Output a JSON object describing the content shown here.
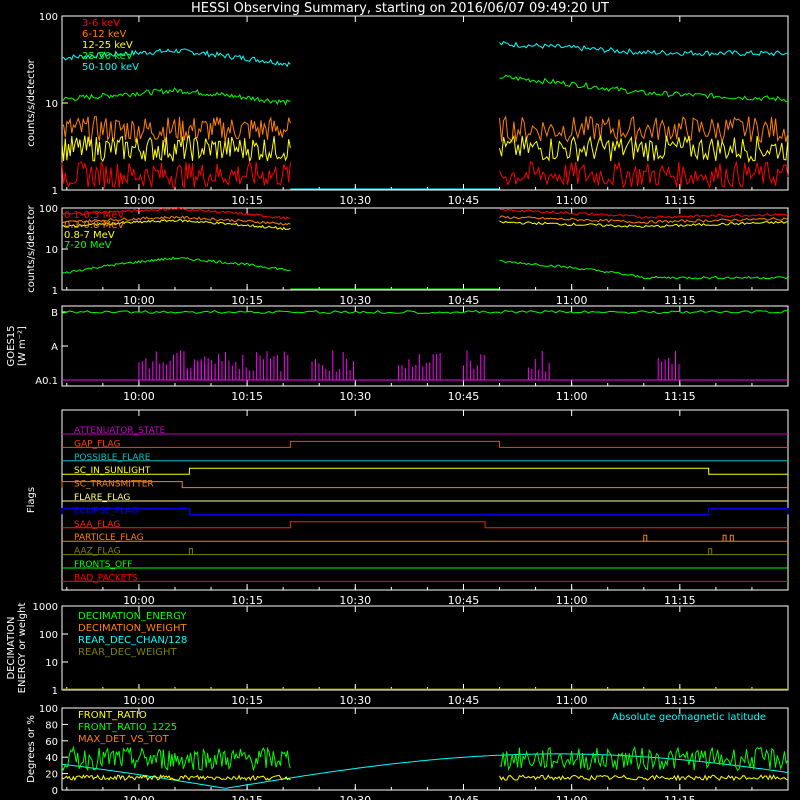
{
  "title": "HESSI Observing Summary, starting on 2016/06/07 09:49:20 UT",
  "time_ticks": [
    "10:00",
    "10:15",
    "10:30",
    "10:45",
    "11:00",
    "11:15"
  ],
  "chart_data": [
    {
      "id": "p1",
      "type": "line",
      "scale": "log",
      "ylabel": "counts/s/detector",
      "ylim": [
        1,
        100
      ],
      "yticks": [
        "1",
        "10",
        "100"
      ],
      "data_gap": [
        "10:21",
        "10:50"
      ],
      "legend": [
        {
          "name": "3-6 keV",
          "color": "#ff0000"
        },
        {
          "name": "6-12 keV",
          "color": "#ff8000"
        },
        {
          "name": "12-25 keV",
          "color": "#ffff00"
        },
        {
          "name": "25-50 keV",
          "color": "#00ff00"
        },
        {
          "name": "50-100 keV",
          "color": "#00ffff"
        }
      ],
      "series": [
        {
          "name": "50-100 keV",
          "color": "#00ffff",
          "values_start_end": [
            [
              33,
              40,
              28
            ],
            [
              48,
              38,
              37
            ]
          ]
        },
        {
          "name": "25-50 keV",
          "color": "#00ff00",
          "values_start_end": [
            [
              11,
              14,
              10
            ],
            [
              20,
              13,
              11
            ]
          ]
        },
        {
          "name": "6-12 keV",
          "color": "#ff8000",
          "values_start_end": [
            [
              5,
              5,
              5
            ],
            [
              5,
              5,
              5
            ]
          ]
        },
        {
          "name": "12-25 keV",
          "color": "#ffff00",
          "values_start_end": [
            [
              3,
              3,
              3
            ],
            [
              3,
              3,
              3
            ]
          ]
        },
        {
          "name": "3-6 keV",
          "color": "#ff0000",
          "values_start_end": [
            [
              1.5,
              1.5,
              1.5
            ],
            [
              1.5,
              1.5,
              1.5
            ]
          ]
        }
      ]
    },
    {
      "id": "p2",
      "type": "line",
      "scale": "log",
      "ylabel": "counts/s/detector",
      "ylim": [
        1,
        100
      ],
      "yticks": [
        "1",
        "10",
        "100"
      ],
      "legend": [
        {
          "name": "0.1-0.3 MeV",
          "color": "#ff0000"
        },
        {
          "name": "0.3-0.8 MeV",
          "color": "#ff8000"
        },
        {
          "name": "0.8-7 MeV",
          "color": "#ffff00"
        },
        {
          "name": "7-20 MeV",
          "color": "#00ff00"
        }
      ],
      "series": [
        {
          "name": "0.1-0.3 MeV",
          "color": "#ff0000",
          "values_start_end": [
            [
              70,
              95,
              55
            ],
            [
              90,
              60,
              70
            ]
          ]
        },
        {
          "name": "0.3-0.8 MeV",
          "color": "#ff8000",
          "values_start_end": [
            [
              45,
              60,
              40
            ],
            [
              60,
              45,
              55
            ]
          ]
        },
        {
          "name": "0.8-7 MeV",
          "color": "#ffff00",
          "values_start_end": [
            [
              35,
              50,
              30
            ],
            [
              45,
              35,
              45
            ]
          ]
        },
        {
          "name": "7-20 MeV",
          "color": "#00ff00",
          "values_start_end": [
            [
              2.5,
              6,
              3
            ],
            [
              5,
              2,
              2
            ]
          ]
        }
      ]
    },
    {
      "id": "p3",
      "type": "line",
      "ylabel": "GOES15",
      "ylabel2": "[W m⁻²]",
      "yticks": [
        "A0.1",
        "A",
        "B"
      ],
      "series": [
        {
          "name": "GOES long",
          "color": "#00ff00",
          "level": "B"
        },
        {
          "name": "GOES short",
          "color": "#ff00ff",
          "level": "A0.1"
        }
      ]
    },
    {
      "id": "p4",
      "type": "line",
      "ylabel": "Flags",
      "flags": [
        {
          "name": "ATTENUATOR_STATE",
          "color": "#c000c0"
        },
        {
          "name": "GAP_FLAG",
          "color": "#ff4000",
          "on": [
            [
              "10:21",
              "10:50"
            ]
          ]
        },
        {
          "name": "POSSIBLE_FLARE",
          "color": "#00c0c0"
        },
        {
          "name": "SC_IN_SUNLIGHT",
          "color": "#ffff00",
          "on": [
            [
              "10:07",
              "11:19"
            ]
          ]
        },
        {
          "name": "SC_TRANSMITTER",
          "color": "#ff8000",
          "on": [
            [
              "09:49",
              "10:06"
            ]
          ]
        },
        {
          "name": "FLARE_FLAG",
          "color": "#ffff80"
        },
        {
          "name": "ECLIPSE_FLAG",
          "color": "#0000ff",
          "on": [
            [
              "09:49",
              "10:07"
            ],
            [
              "11:19",
              "11:30"
            ]
          ]
        },
        {
          "name": "SAA_FLAG",
          "color": "#ff2000",
          "on": [
            [
              "10:21",
              "10:48"
            ]
          ]
        },
        {
          "name": "PARTICLE_FLAG",
          "color": "#ff8000",
          "spikes": [
            "11:10",
            "11:21",
            "11:22"
          ]
        },
        {
          "name": "AAZ_FLAG",
          "color": "#808000",
          "spikes": [
            "10:07",
            "11:19"
          ]
        },
        {
          "name": "FRONTS_OFF",
          "color": "#00ff00"
        },
        {
          "name": "BAD_PACKETS",
          "color": "#ff0000"
        }
      ]
    },
    {
      "id": "p5",
      "type": "line",
      "scale": "log",
      "ylabel": "DECIMATION",
      "ylabel2": "ENERGY or weight",
      "ylim": [
        1,
        1000
      ],
      "yticks": [
        "1",
        "10",
        "100",
        "1000"
      ],
      "legend": [
        {
          "name": "DECIMATION_ENERGY",
          "color": "#00ff00"
        },
        {
          "name": "DECIMATION_WEIGHT",
          "color": "#ff8000"
        },
        {
          "name": "REAR_DEC_CHAN/128",
          "color": "#00ffff"
        },
        {
          "name": "REAR_DEC_WEIGHT",
          "color": "#808000"
        }
      ]
    },
    {
      "id": "p6",
      "type": "line",
      "ylabel": "Degrees or %",
      "ylim": [
        0,
        100
      ],
      "yticks": [
        "0",
        "20",
        "40",
        "60",
        "80",
        "100"
      ],
      "annotation": "Absolute geomagnetic latitude",
      "legend": [
        {
          "name": "FRONT_RATIO",
          "color": "#ffff00"
        },
        {
          "name": "FRONT_RATIO_1225",
          "color": "#00ff00"
        },
        {
          "name": "MAX_DET_VS_TOT",
          "color": "#ff8000"
        }
      ],
      "series": [
        {
          "name": "FRONT_RATIO_1225",
          "color": "#00ff00",
          "mean": 38
        },
        {
          "name": "FRONT_RATIO",
          "color": "#ffff00",
          "mean": 15
        },
        {
          "name": "Absolute geomagnetic latitude",
          "color": "#00ffff"
        }
      ]
    }
  ]
}
